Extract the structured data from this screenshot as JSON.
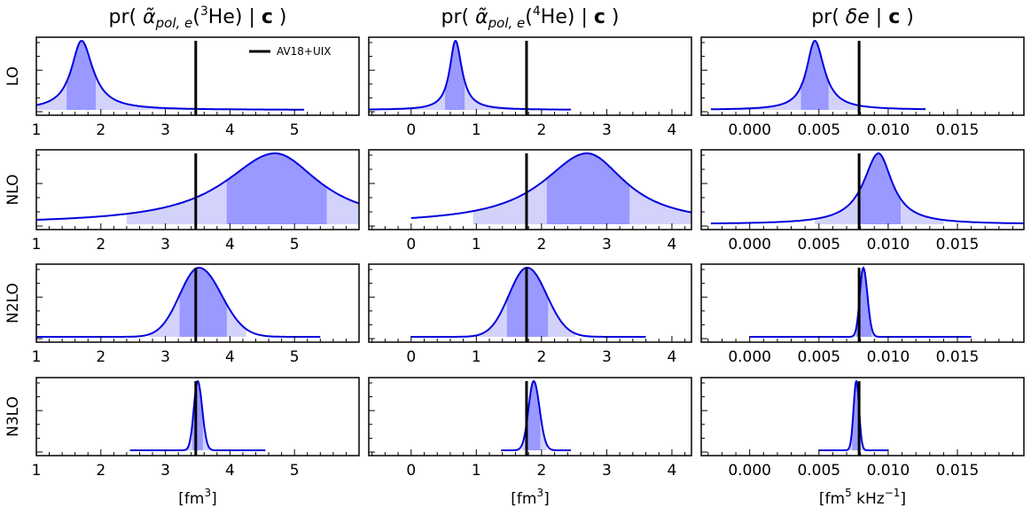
{
  "chart_data": {
    "type": "area",
    "description_note": "4x3 grid of posterior density plots",
    "colors": {
      "curve": "#0000dd",
      "fill68": "#9999ff",
      "fill95": "#d2d2fb",
      "reference": "#000000"
    },
    "legend": {
      "label": "AV18+UIX",
      "placement": "top-right of LO row, first column"
    },
    "row_labels": [
      "LO",
      "NLO",
      "N2LO",
      "N3LO"
    ],
    "columns": [
      {
        "title_prefix": "pr( ",
        "title_symbol": "α̃",
        "title_sub": "pol, e",
        "title_sup": "3",
        "title_nucleus": "He)",
        "title_suffix": " | ",
        "title_bold": "c",
        "title_end": " )",
        "xlim": [
          1.0,
          6.0
        ],
        "ticks": [
          1,
          2,
          3,
          4,
          5
        ],
        "tick_labels": [
          "1",
          "2",
          "3",
          "4",
          "5"
        ],
        "xlabel_main": "[fm",
        "xlabel_sup": "3",
        "xlabel_end": "]",
        "reference": 3.47,
        "rows": [
          {
            "peak": 1.7,
            "sl": 0.16,
            "sr": 0.18,
            "tails": "cauchy",
            "range": [
              1.0,
              5.15
            ],
            "band68": [
              1.47,
              1.92
            ],
            "band95": [
              1.02,
              3.5
            ]
          },
          {
            "peak": 4.7,
            "sl": 0.8,
            "sr": 0.7,
            "tails": "cauchy",
            "range": [
              1.0,
              6.0
            ],
            "band68": [
              3.95,
              5.5
            ],
            "band95": [
              2.4,
              6.0
            ]
          },
          {
            "peak": 3.52,
            "sl": 0.3,
            "sr": 0.35,
            "tails": "gauss",
            "range": [
              1.0,
              5.4
            ],
            "band68": [
              3.22,
              3.95
            ],
            "band95": [
              2.75,
              4.25
            ]
          },
          {
            "peak": 3.5,
            "sl": 0.06,
            "sr": 0.07,
            "tails": "gauss",
            "range": [
              2.45,
              4.55
            ],
            "band68": [
              3.42,
              3.58
            ],
            "band95": [
              3.3,
              3.7
            ]
          }
        ]
      },
      {
        "title_prefix": "pr( ",
        "title_symbol": "α̃",
        "title_sub": "pol, e",
        "title_sup": "4",
        "title_nucleus": "He)",
        "title_suffix": " | ",
        "title_bold": "c",
        "title_end": " )",
        "xlim": [
          -0.65,
          4.3
        ],
        "ticks": [
          0,
          1,
          2,
          3,
          4
        ],
        "tick_labels": [
          "0",
          "1",
          "2",
          "3",
          "4"
        ],
        "xlabel_main": "[fm",
        "xlabel_sup": "3",
        "xlabel_end": "]",
        "reference": 1.77,
        "rows": [
          {
            "peak": 0.68,
            "sl": 0.09,
            "sr": 0.1,
            "tails": "cauchy",
            "range": [
              -0.65,
              2.45
            ],
            "band68": [
              0.52,
              0.82
            ],
            "band95": [
              -0.6,
              1.8
            ]
          },
          {
            "peak": 2.7,
            "sl": 0.7,
            "sr": 0.6,
            "tails": "cauchy",
            "range": [
              0.0,
              4.3
            ],
            "band68": [
              2.08,
              3.35
            ],
            "band95": [
              0.95,
              4.3
            ]
          },
          {
            "peak": 1.78,
            "sl": 0.28,
            "sr": 0.3,
            "tails": "gauss",
            "range": [
              0.0,
              3.6
            ],
            "band68": [
              1.47,
              2.1
            ],
            "band95": [
              1.0,
              2.52
            ]
          },
          {
            "peak": 1.88,
            "sl": 0.08,
            "sr": 0.09,
            "tails": "gauss",
            "range": [
              1.38,
              2.45
            ],
            "band68": [
              1.78,
              1.98
            ],
            "band95": [
              1.7,
              2.08
            ]
          }
        ]
      },
      {
        "title_prefix": "pr( ",
        "title_symbol": "δe",
        "title_sub": "",
        "title_sup": "",
        "title_nucleus": "",
        "title_suffix": " | ",
        "title_bold": "c",
        "title_end": " )",
        "xlim": [
          -0.0035,
          0.0198
        ],
        "ticks": [
          0.0,
          0.005,
          0.01,
          0.015
        ],
        "tick_labels": [
          "0.000",
          "0.005",
          "0.010",
          "0.015"
        ],
        "xlabel_main": "[fm",
        "xlabel_sup": "5",
        "xlabel_end": " kHz",
        "xlabel_sup2": "−1",
        "xlabel_end2": "]",
        "reference": 0.0079,
        "rows": [
          {
            "peak": 0.0047,
            "sl": 0.0006,
            "sr": 0.0007,
            "tails": "cauchy",
            "range": [
              -0.0028,
              0.0127
            ],
            "band68": [
              0.0037,
              0.0057
            ],
            "band95": [
              -0.0025,
              0.0079
            ]
          },
          {
            "peak": 0.0093,
            "sl": 0.0011,
            "sr": 0.001,
            "tails": "cauchy",
            "range": [
              -0.0028,
              0.0198
            ],
            "band68": [
              0.0078,
              0.0109
            ],
            "band95": [
              0.0047,
              0.014
            ]
          },
          {
            "peak": 0.0082,
            "sl": 0.00025,
            "sr": 0.0003,
            "tails": "gauss",
            "range": [
              0.0,
              0.016
            ],
            "band68": [
              0.0077,
              0.0088
            ],
            "band95": [
              0.0072,
              0.0091
            ]
          },
          {
            "peak": 0.0077,
            "sl": 0.0002,
            "sr": 0.0002,
            "tails": "gauss",
            "range": [
              0.005,
              0.01
            ],
            "band68": [
              0.0074,
              0.008
            ],
            "band95": [
              0.0072,
              0.0082
            ]
          }
        ]
      }
    ]
  }
}
